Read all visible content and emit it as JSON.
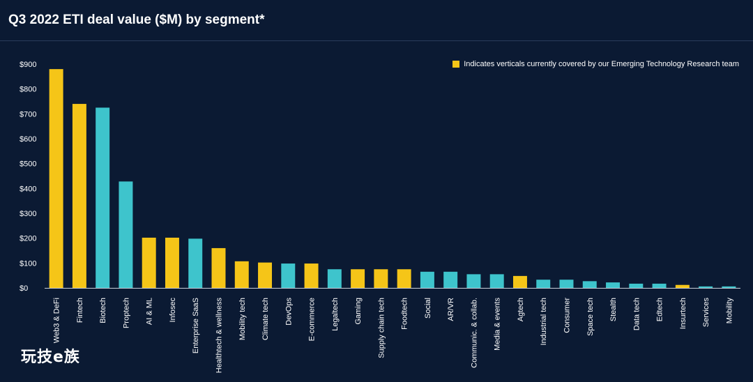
{
  "title": "Q3 2022 ETI deal value ($M) by segment*",
  "legend": {
    "label": "Indicates verticals currently covered by our Emerging Technology Research team",
    "color": "#f5c518"
  },
  "watermark": "玩技e族",
  "colors": {
    "covered": "#f5c518",
    "other": "#3ec4cc",
    "background": "#0b1a33",
    "axis": "#c8cfd9"
  },
  "chart_data": {
    "type": "bar",
    "title": "Q3 2022 ETI deal value ($M) by segment*",
    "xlabel": "",
    "ylabel": "",
    "ylim": [
      0,
      900
    ],
    "yticks": [
      "$0",
      "$100",
      "$200",
      "$300",
      "$400",
      "$500",
      "$600",
      "$700",
      "$800",
      "$900"
    ],
    "categories": [
      "Web3 & DeFi",
      "Fintech",
      "Biotech",
      "Proptech",
      "AI & ML",
      "Infosec",
      "Enterprise SaaS",
      "Healthtech & wellness",
      "Mobility tech",
      "Climate tech",
      "DevOps",
      "E-commerce",
      "Legaltech",
      "Gaming",
      "Supply chain tech",
      "Foodtech",
      "Social",
      "AR/VR",
      "Communic. & collab.",
      "Media & events",
      "Agtech",
      "Industrial tech",
      "Consumer",
      "Space tech",
      "Stealth",
      "Data tech",
      "Edtech",
      "Insurtech",
      "Services",
      "Mobility"
    ],
    "values": [
      880,
      740,
      725,
      428,
      202,
      202,
      198,
      160,
      107,
      102,
      98,
      98,
      75,
      75,
      75,
      75,
      65,
      65,
      55,
      55,
      48,
      33,
      33,
      27,
      22,
      17,
      17,
      12,
      6,
      6
    ],
    "covered": [
      true,
      true,
      false,
      false,
      true,
      true,
      false,
      true,
      true,
      true,
      false,
      true,
      false,
      true,
      true,
      true,
      false,
      false,
      false,
      false,
      true,
      false,
      false,
      false,
      false,
      false,
      false,
      true,
      false,
      false
    ],
    "grid": false,
    "legend_position": "top-right"
  }
}
